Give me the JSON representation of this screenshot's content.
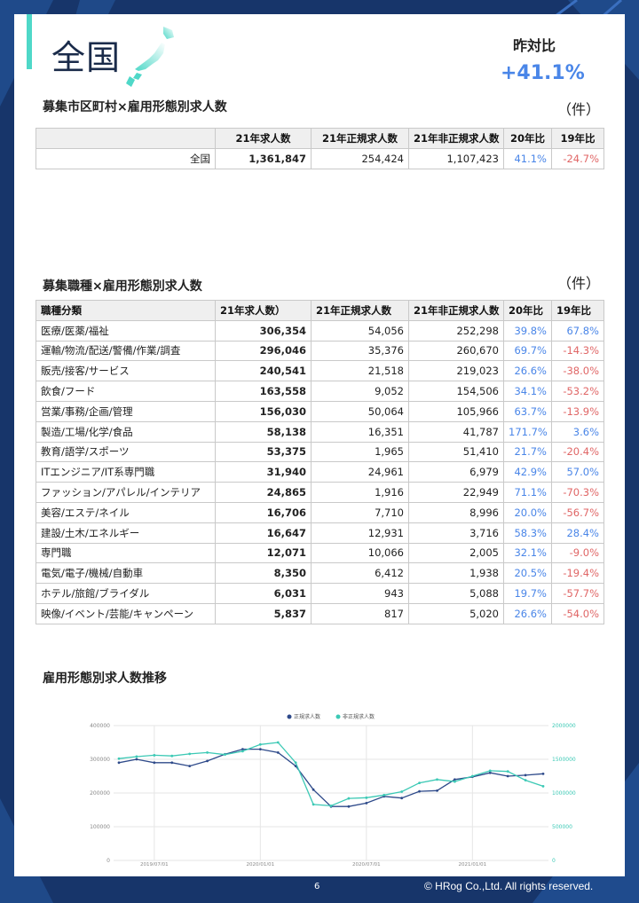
{
  "header": {
    "title": "全国",
    "yoy_label": "昨対比",
    "yoy_value": "+41.1%"
  },
  "section1": {
    "title": "募集市区町村×雇用形態別求人数",
    "unit": "（件）",
    "headers": [
      "",
      "21年求人数",
      "21年正規求人数",
      "21年非正規求人数",
      "20年比",
      "19年比"
    ],
    "row": {
      "name": "全国",
      "total": "1,361,847",
      "regular": "254,424",
      "nonregular": "1,107,423",
      "vs20": "41.1%",
      "vs19": "-24.7%"
    }
  },
  "section2": {
    "title": "募集職種×雇用形態別求人数",
    "unit": "（件）",
    "headers": [
      "職種分類",
      "21年求人数）",
      "21年正規求人数",
      "21年非正規求人数",
      "20年比",
      "19年比"
    ],
    "rows": [
      {
        "name": "医療/医薬/福祉",
        "total": "306,354",
        "regular": "54,056",
        "nonregular": "252,298",
        "vs20": "39.8%",
        "vs19": "67.8%"
      },
      {
        "name": "運輸/物流/配送/警備/作業/調査",
        "total": "296,046",
        "regular": "35,376",
        "nonregular": "260,670",
        "vs20": "69.7%",
        "vs19": "-14.3%"
      },
      {
        "name": "販売/接客/サービス",
        "total": "240,541",
        "regular": "21,518",
        "nonregular": "219,023",
        "vs20": "26.6%",
        "vs19": "-38.0%"
      },
      {
        "name": "飲食/フード",
        "total": "163,558",
        "regular": "9,052",
        "nonregular": "154,506",
        "vs20": "34.1%",
        "vs19": "-53.2%"
      },
      {
        "name": "営業/事務/企画/管理",
        "total": "156,030",
        "regular": "50,064",
        "nonregular": "105,966",
        "vs20": "63.7%",
        "vs19": "-13.9%"
      },
      {
        "name": "製造/工場/化学/食品",
        "total": "58,138",
        "regular": "16,351",
        "nonregular": "41,787",
        "vs20": "171.7%",
        "vs19": "3.6%"
      },
      {
        "name": "教育/語学/スポーツ",
        "total": "53,375",
        "regular": "1,965",
        "nonregular": "51,410",
        "vs20": "21.7%",
        "vs19": "-20.4%"
      },
      {
        "name": "ITエンジニア/IT系専門職",
        "total": "31,940",
        "regular": "24,961",
        "nonregular": "6,979",
        "vs20": "42.9%",
        "vs19": "57.0%"
      },
      {
        "name": "ファッション/アパレル/インテリア",
        "total": "24,865",
        "regular": "1,916",
        "nonregular": "22,949",
        "vs20": "71.1%",
        "vs19": "-70.3%"
      },
      {
        "name": "美容/エステ/ネイル",
        "total": "16,706",
        "regular": "7,710",
        "nonregular": "8,996",
        "vs20": "20.0%",
        "vs19": "-56.7%"
      },
      {
        "name": "建設/土木/エネルギー",
        "total": "16,647",
        "regular": "12,931",
        "nonregular": "3,716",
        "vs20": "58.3%",
        "vs19": "28.4%"
      },
      {
        "name": "専門職",
        "total": "12,071",
        "regular": "10,066",
        "nonregular": "2,005",
        "vs20": "32.1%",
        "vs19": "-9.0%"
      },
      {
        "name": "電気/電子/機械/自動車",
        "total": "8,350",
        "regular": "6,412",
        "nonregular": "1,938",
        "vs20": "20.5%",
        "vs19": "-19.4%"
      },
      {
        "name": "ホテル/旅館/ブライダル",
        "total": "6,031",
        "regular": "943",
        "nonregular": "5,088",
        "vs20": "19.7%",
        "vs19": "-57.7%"
      },
      {
        "name": "映像/イベント/芸能/キャンペーン",
        "total": "5,837",
        "regular": "817",
        "nonregular": "5,020",
        "vs20": "26.6%",
        "vs19": "-54.0%"
      }
    ]
  },
  "section3": {
    "title": "雇用形態別求人数推移"
  },
  "chart_data": {
    "type": "line",
    "title": "",
    "x": [
      "2019/05",
      "2019/06",
      "2019/07",
      "2019/08",
      "2019/09",
      "2019/10",
      "2019/11",
      "2019/12",
      "2020/01",
      "2020/02",
      "2020/03",
      "2020/04",
      "2020/05",
      "2020/06",
      "2020/07",
      "2020/08",
      "2020/09",
      "2020/10",
      "2020/11",
      "2020/12",
      "2021/01",
      "2021/02",
      "2021/03",
      "2021/04",
      "2021/05"
    ],
    "x_ticks": [
      "2019/07/01",
      "2020/01/01",
      "2020/07/01",
      "2021/01/01"
    ],
    "series": [
      {
        "name": "正規求人数",
        "axis": "left",
        "color": "#2e4a8a",
        "values": [
          290000,
          300000,
          290000,
          290000,
          280000,
          295000,
          315000,
          330000,
          330000,
          320000,
          280000,
          210000,
          160000,
          160000,
          170000,
          190000,
          185000,
          205000,
          207000,
          240000,
          248000,
          260000,
          250000,
          253000,
          257000
        ]
      },
      {
        "name": "非正規求人数",
        "axis": "right",
        "color": "#3cc9b5",
        "values": [
          1510000,
          1540000,
          1560000,
          1550000,
          1580000,
          1600000,
          1570000,
          1620000,
          1720000,
          1750000,
          1450000,
          830000,
          810000,
          920000,
          930000,
          970000,
          1020000,
          1150000,
          1200000,
          1170000,
          1250000,
          1330000,
          1320000,
          1190000,
          1100000
        ]
      }
    ],
    "y_left": {
      "ticks": [
        "0",
        "100000",
        "200000",
        "300000",
        "400000"
      ],
      "ylim": [
        0,
        400000
      ]
    },
    "y_right": {
      "ticks": [
        "0",
        "500000",
        "1000000",
        "1500000",
        "2000000"
      ],
      "ylim": [
        0,
        2000000
      ]
    },
    "legend": "top",
    "grid": true
  },
  "footer": {
    "page_number": "6",
    "copyright": "© HRog Co.,Ltd. All rights reserved."
  },
  "colors": {
    "positive": "#4a86e8",
    "negative": "#e06666",
    "accent": "#4fd8c8",
    "background": "#1a3a6b"
  }
}
